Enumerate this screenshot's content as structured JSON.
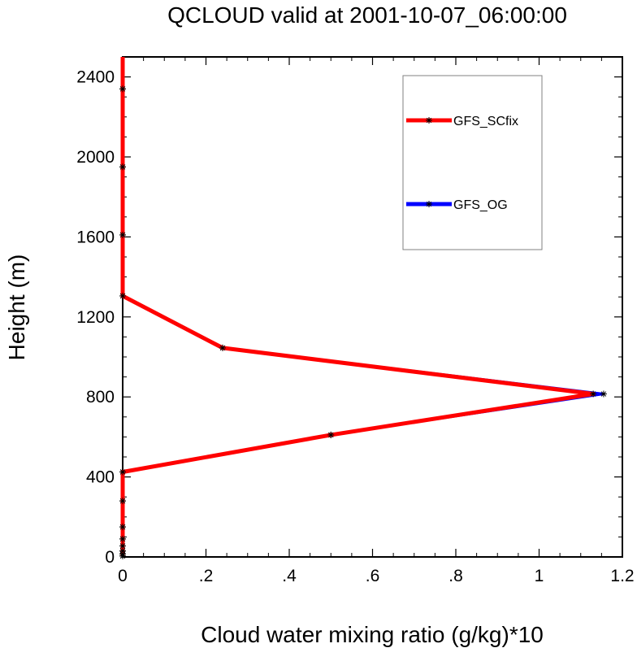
{
  "chart_data": {
    "type": "line",
    "title": "QCLOUD valid at 2001-10-07_06:00:00",
    "xlabel": "Cloud water mixing ratio (g/kg)*10",
    "ylabel": "Height (m)",
    "xlim": [
      0,
      1.2
    ],
    "ylim": [
      0,
      2500
    ],
    "x_ticks": [
      0,
      0.2,
      0.4,
      0.6,
      0.8,
      1.0,
      1.2
    ],
    "x_tick_labels": [
      "0",
      ".2",
      ".4",
      ".6",
      ".8",
      "1",
      "1.2"
    ],
    "y_ticks": [
      0,
      400,
      800,
      1200,
      1600,
      2000,
      2400
    ],
    "y_tick_labels": [
      "0",
      "400",
      "800",
      "1200",
      "1600",
      "2000",
      "2400"
    ],
    "grid": false,
    "legend_position": "top-right",
    "series": [
      {
        "name": "GFS_OG",
        "color": "#0000ff",
        "marker": "asterisk",
        "points": [
          {
            "x": 0,
            "y": 5
          },
          {
            "x": 0,
            "y": 15
          },
          {
            "x": 0,
            "y": 30
          },
          {
            "x": 0,
            "y": 55
          },
          {
            "x": 0,
            "y": 90
          },
          {
            "x": 0,
            "y": 150
          },
          {
            "x": 0,
            "y": 280
          },
          {
            "x": 0,
            "y": 425
          },
          {
            "x": 0.5,
            "y": 610
          },
          {
            "x": 1.155,
            "y": 815
          },
          {
            "x": 0.24,
            "y": 1045
          },
          {
            "x": 0,
            "y": 1305
          },
          {
            "x": 0,
            "y": 1610
          },
          {
            "x": 0,
            "y": 1950
          },
          {
            "x": 0,
            "y": 2340
          },
          {
            "x": 0,
            "y": 2500
          }
        ]
      },
      {
        "name": "GFS_SCfix",
        "color": "#ff0000",
        "marker": "asterisk",
        "points": [
          {
            "x": 0,
            "y": 5
          },
          {
            "x": 0,
            "y": 15
          },
          {
            "x": 0,
            "y": 30
          },
          {
            "x": 0,
            "y": 55
          },
          {
            "x": 0,
            "y": 90
          },
          {
            "x": 0,
            "y": 150
          },
          {
            "x": 0,
            "y": 280
          },
          {
            "x": 0,
            "y": 425
          },
          {
            "x": 0.5,
            "y": 610
          },
          {
            "x": 1.13,
            "y": 815
          },
          {
            "x": 0.24,
            "y": 1045
          },
          {
            "x": 0,
            "y": 1305
          },
          {
            "x": 0,
            "y": 1610
          },
          {
            "x": 0,
            "y": 1950
          },
          {
            "x": 0,
            "y": 2340
          },
          {
            "x": 0,
            "y": 2500
          }
        ]
      }
    ],
    "legend_order": [
      "GFS_SCfix",
      "GFS_OG"
    ]
  }
}
